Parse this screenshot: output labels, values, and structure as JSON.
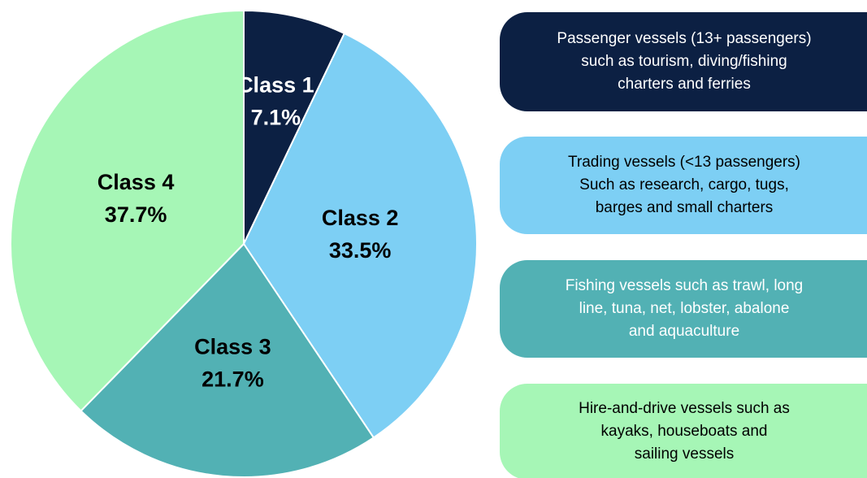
{
  "chart_data": {
    "type": "pie",
    "categories": [
      "Class 1",
      "Class 2",
      "Class 3",
      "Class 4"
    ],
    "values": [
      7.1,
      33.5,
      21.7,
      37.7
    ],
    "value_labels": [
      "7.1%",
      "33.5%",
      "21.7%",
      "37.7%"
    ],
    "colors": [
      "#0c2043",
      "#7dcff4",
      "#52b1b4",
      "#a6f6b6"
    ],
    "annotations": [
      [
        "Passenger vessels (13+ passengers)",
        "such as tourism, diving/fishing",
        "charters and ferries"
      ],
      [
        "Trading vessels (<13 passengers)",
        "Such as research, cargo, tugs,",
        "barges and small charters"
      ],
      [
        "Fishing vessels such as trawl, long",
        "line, tuna, net, lobster, abalone",
        "and aquaculture"
      ],
      [
        "Hire-and-drive vessels such as",
        "kayaks, houseboats and",
        "sailing vessels"
      ]
    ]
  }
}
